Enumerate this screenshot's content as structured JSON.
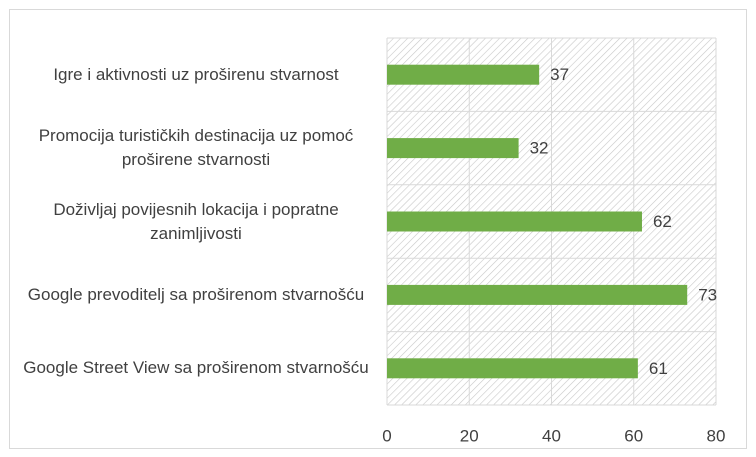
{
  "chart_data": {
    "type": "bar",
    "orientation": "horizontal",
    "categories": [
      "Igre i aktivnosti uz proširenu stvarnost",
      "Promocija turističkih destinacija uz pomoć proširene stvarnosti",
      "Doživljaj povijesnih lokacija i popratne zanimljivosti",
      "Google prevoditelj sa proširenom stvarnošću",
      "Google Street View sa proširenom stvarnošću"
    ],
    "values": [
      37,
      32,
      62,
      73,
      61
    ],
    "color": "#70ad47",
    "xlim": [
      0,
      80
    ],
    "xticks": [
      0,
      20,
      40,
      60,
      80
    ],
    "grid": true
  }
}
